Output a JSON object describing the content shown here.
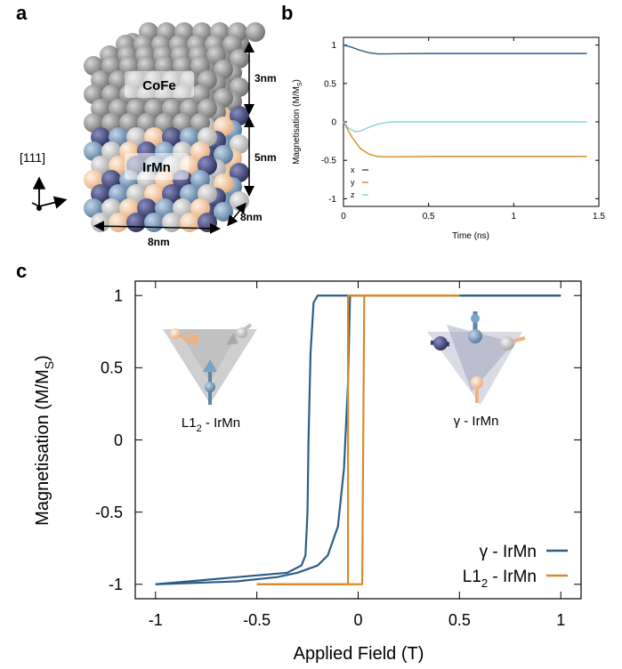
{
  "panels": {
    "a": "a",
    "b": "b",
    "c": "c"
  },
  "panel_a": {
    "direction_label": "[111]",
    "layer_top_label": "CoFe",
    "layer_bottom_label": "IrMn",
    "dim_top": "3nm",
    "dim_bottom": "5nm",
    "dim_depth": "8nm",
    "dim_width": "8nm",
    "colors": {
      "cofe": "#8a8a8a",
      "ir": "#3b3f6e",
      "mn_a": "#f5c9a4",
      "mn_b": "#7a9ab5",
      "mn_c": "#c8c8c8"
    }
  },
  "panel_c": {
    "inset_left_label": "L1",
    "inset_left_sub": "2",
    "inset_left_suffix": " - IrMn",
    "inset_right_label": "γ - IrMn"
  },
  "chart_data": [
    {
      "type": "line",
      "panel": "b",
      "xlabel": "Time (ns)",
      "ylabel": "Magnetisation (M/M",
      "ylabel_sub": "S",
      "ylabel_end": ")",
      "xlim": [
        0,
        1.5
      ],
      "ylim": [
        -1.1,
        1.1
      ],
      "xticks": [
        0,
        0.5,
        1,
        1.5
      ],
      "xtick_labels": [
        "0",
        "0.5",
        "1",
        "1.5"
      ],
      "yticks": [
        1,
        0.5,
        0,
        -0.5,
        -1
      ],
      "ytick_labels": [
        "1",
        "0.5",
        "0",
        "-0.5",
        "-1"
      ],
      "legend_placement": "bottom-left",
      "series": [
        {
          "name": "x",
          "color": "#2e5d86",
          "x": [
            0,
            0.05,
            0.1,
            0.15,
            0.2,
            0.25,
            0.3,
            0.5,
            1.0,
            1.43
          ],
          "y": [
            1.0,
            0.97,
            0.93,
            0.9,
            0.885,
            0.885,
            0.887,
            0.89,
            0.89,
            0.89
          ]
        },
        {
          "name": "y",
          "color": "#d98a2b",
          "x": [
            0,
            0.05,
            0.1,
            0.15,
            0.2,
            0.25,
            0.3,
            0.5,
            1.0,
            1.43
          ],
          "y": [
            0.0,
            -0.2,
            -0.35,
            -0.42,
            -0.45,
            -0.455,
            -0.455,
            -0.45,
            -0.45,
            -0.45
          ]
        },
        {
          "name": "z",
          "color": "#8fd0e0",
          "x": [
            0,
            0.03,
            0.07,
            0.1,
            0.15,
            0.2,
            0.25,
            0.3,
            0.5,
            1.0,
            1.43
          ],
          "y": [
            0.0,
            -0.08,
            -0.13,
            -0.12,
            -0.07,
            -0.03,
            -0.01,
            0.0,
            0.0,
            0.0,
            0.0
          ]
        }
      ]
    },
    {
      "type": "line",
      "panel": "c",
      "xlabel": "Applied Field (T)",
      "ylabel": "Magnetisation (M/M",
      "ylabel_sub": "S",
      "ylabel_end": ")",
      "xlim": [
        -1.1,
        1.1
      ],
      "ylim": [
        -1.1,
        1.1
      ],
      "xticks": [
        -1,
        -0.5,
        0,
        0.5,
        1
      ],
      "xtick_labels": [
        "-1",
        "-0.5",
        "0",
        "0.5",
        "1"
      ],
      "yticks": [
        1,
        0.5,
        0,
        -0.5,
        -1
      ],
      "ytick_labels": [
        "1",
        "0.5",
        "0",
        "-0.5",
        "-1"
      ],
      "legend_placement": "bottom-right",
      "series": [
        {
          "name": "γ - IrMn",
          "name_sub": "",
          "color": "#2e5d86",
          "x": [
            -1,
            -0.6,
            -0.4,
            -0.3,
            -0.2,
            -0.15,
            -0.1,
            -0.07,
            -0.05,
            -0.04,
            -0.03,
            1
          ],
          "y": [
            -1,
            -0.98,
            -0.95,
            -0.92,
            -0.87,
            -0.8,
            -0.6,
            -0.2,
            0.4,
            1,
            1,
            1
          ],
          "x_return": [
            1,
            -0.2,
            -0.22,
            -0.235,
            -0.245,
            -0.25,
            -0.26,
            -0.28,
            -0.35,
            -1
          ],
          "y_return": [
            1,
            1,
            0.95,
            0.6,
            0.0,
            -0.5,
            -0.8,
            -0.87,
            -0.92,
            -1
          ]
        },
        {
          "name": "L1",
          "name_sub": "2",
          "name_suffix": " - IrMn",
          "color": "#d98a2b",
          "x": [
            -0.5,
            0.01,
            0.02,
            0.03,
            0.5
          ],
          "y": [
            -1,
            -1,
            -1,
            1,
            1
          ],
          "x_return": [
            0.5,
            -0.04,
            -0.05,
            -0.05,
            -0.5
          ],
          "y_return": [
            1,
            1,
            1,
            -1,
            -1
          ]
        }
      ]
    }
  ]
}
